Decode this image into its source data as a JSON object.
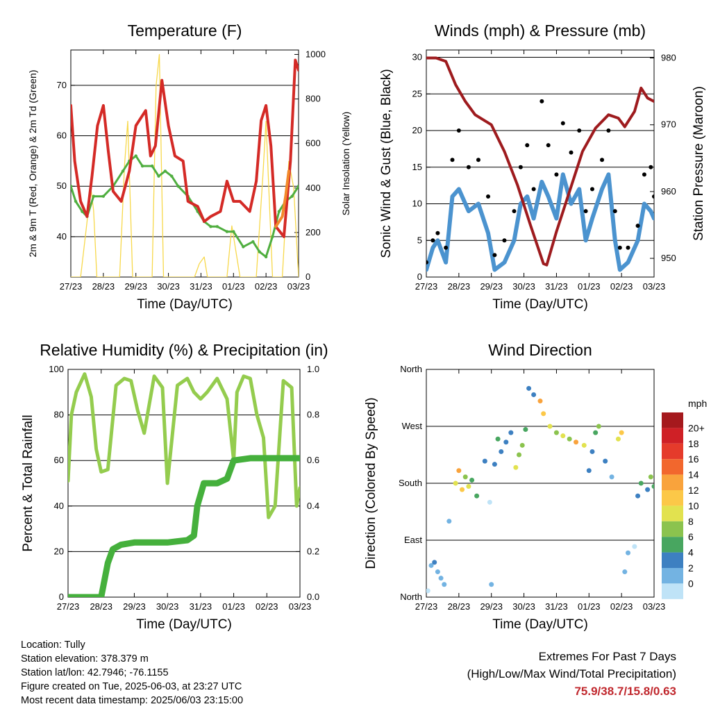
{
  "x_ticks": [
    "27/23",
    "28/23",
    "29/23",
    "30/23",
    "31/23",
    "01/23",
    "02/23",
    "03/23"
  ],
  "colors": {
    "temp_2m": "#d42a26",
    "temp_9m": "#f28a2b",
    "dewpoint": "#4fae3f",
    "solar": "#f7d84a",
    "sonic_wind": "#4b93cf",
    "gust": "#000000",
    "pressure": "#9e1b1e",
    "rh": "#94cc4e",
    "precip": "#45b03c"
  },
  "chart_data": [
    {
      "type": "line",
      "title": "Temperature (F)",
      "xlabel": "Time (Day/UTC)",
      "ylabel": "2m & 9m T (Red, Orange) & 2m Td (Green)",
      "y2label": "Solar Insolation (Yellow)",
      "ylim": [
        32,
        77
      ],
      "yticks": [
        40,
        50,
        60,
        70
      ],
      "y2lim": [
        0,
        1020
      ],
      "y2ticks": [
        0,
        200,
        400,
        600,
        800,
        1000
      ],
      "xlim": [
        0,
        7
      ],
      "series": [
        {
          "name": "2m T",
          "axis": "left",
          "x": [
            0,
            0.12,
            0.3,
            0.5,
            0.65,
            0.82,
            1.0,
            1.15,
            1.3,
            1.55,
            1.8,
            2.0,
            2.3,
            2.45,
            2.6,
            2.8,
            3.0,
            3.2,
            3.45,
            3.6,
            3.9,
            4.1,
            4.3,
            4.6,
            4.8,
            5.0,
            5.2,
            5.5,
            5.7,
            5.85,
            6.0,
            6.15,
            6.3,
            6.55,
            6.75,
            6.9,
            7.0
          ],
          "y": [
            66,
            55,
            47,
            44,
            52,
            62,
            66,
            57,
            49,
            47,
            53,
            62,
            65,
            56,
            58,
            71,
            62,
            56,
            55,
            47,
            46,
            43,
            44,
            45,
            51,
            47,
            47,
            45,
            51,
            63,
            66,
            58,
            42,
            40,
            55,
            75,
            73
          ]
        },
        {
          "name": "9m T",
          "axis": "left",
          "x": [
            6.3,
            6.4,
            6.5,
            6.6,
            6.7
          ],
          "y": [
            42,
            43,
            44,
            48,
            53
          ]
        },
        {
          "name": "2m Td",
          "axis": "left",
          "x": [
            0,
            0.15,
            0.35,
            0.5,
            0.7,
            1.0,
            1.3,
            1.6,
            1.8,
            2.0,
            2.2,
            2.5,
            2.7,
            2.9,
            3.1,
            3.3,
            3.6,
            3.9,
            4.1,
            4.3,
            4.5,
            4.8,
            5.0,
            5.3,
            5.6,
            5.8,
            6.0,
            6.2,
            6.4,
            6.6,
            6.8,
            7.0
          ],
          "y": [
            50,
            47,
            45,
            44,
            48,
            48,
            50,
            53,
            55,
            56,
            54,
            54,
            52,
            53,
            52,
            50,
            48,
            45,
            43,
            42,
            42,
            41,
            41,
            38,
            39,
            37,
            36,
            40,
            45,
            47,
            48,
            50
          ]
        },
        {
          "name": "Solar",
          "axis": "right",
          "x": [
            0,
            0.3,
            0.5,
            0.6,
            0.7,
            0.8,
            1.2,
            1.5,
            1.65,
            1.75,
            1.9,
            2.2,
            2.5,
            2.62,
            2.72,
            2.85,
            3.2,
            3.5,
            3.8,
            3.95,
            4.1,
            4.2,
            4.5,
            4.8,
            4.95,
            5.2,
            5.5,
            5.7,
            5.9,
            6.0,
            6.2,
            6.5,
            6.7,
            6.85,
            7.0
          ],
          "y": [
            0,
            0,
            250,
            420,
            300,
            0,
            0,
            0,
            500,
            700,
            0,
            0,
            0,
            860,
            1000,
            0,
            0,
            0,
            0,
            60,
            90,
            0,
            0,
            0,
            230,
            0,
            0,
            0,
            450,
            700,
            0,
            0,
            520,
            400,
            0
          ]
        }
      ]
    },
    {
      "type": "line",
      "title": "Winds (mph) & Pressure (mb)",
      "xlabel": "Time (Day/UTC)",
      "ylabel": "Sonic Wind & Gust (Blue, Black)",
      "y2label": "Station Pressure (Maroon)",
      "ylim": [
        0,
        31
      ],
      "yticks": [
        0,
        5,
        10,
        15,
        20,
        25,
        30
      ],
      "y2lim": [
        947.2,
        981.2
      ],
      "y2ticks": [
        950,
        960,
        970,
        980
      ],
      "xlim": [
        0,
        7
      ],
      "series": [
        {
          "name": "Sonic Wind",
          "axis": "left",
          "x": [
            0,
            0.2,
            0.35,
            0.6,
            0.8,
            1.0,
            1.3,
            1.6,
            1.9,
            2.1,
            2.4,
            2.7,
            2.9,
            3.1,
            3.3,
            3.55,
            3.75,
            4.0,
            4.2,
            4.45,
            4.7,
            4.9,
            5.1,
            5.4,
            5.6,
            5.8,
            5.95,
            6.2,
            6.5,
            6.7,
            6.9,
            7.0
          ],
          "y": [
            1,
            4,
            5,
            2,
            11,
            12,
            9,
            10,
            6,
            1,
            2,
            5,
            10,
            11,
            8,
            13,
            11,
            8,
            14,
            10,
            12,
            5,
            8,
            12,
            14,
            5,
            1,
            2,
            5,
            10,
            9,
            8
          ]
        },
        {
          "name": "Gust",
          "axis": "left",
          "x": [
            0,
            0.2,
            0.35,
            0.6,
            0.8,
            1.0,
            1.3,
            1.6,
            1.9,
            2.1,
            2.4,
            2.7,
            2.9,
            3.1,
            3.3,
            3.55,
            3.75,
            4.0,
            4.2,
            4.45,
            4.7,
            4.9,
            5.1,
            5.4,
            5.6,
            5.8,
            5.95,
            6.2,
            6.5,
            6.7,
            6.9,
            7.0
          ],
          "y": [
            2,
            5,
            6,
            4,
            16,
            20,
            15,
            16,
            11,
            3,
            5,
            9,
            15,
            18,
            12,
            24,
            18,
            14,
            21,
            17,
            20,
            9,
            12,
            16,
            20,
            9,
            4,
            4,
            7,
            14,
            15,
            11
          ]
        },
        {
          "name": "Pressure",
          "axis": "right",
          "x": [
            0,
            0.3,
            0.6,
            0.9,
            1.2,
            1.5,
            2.0,
            2.4,
            2.8,
            3.2,
            3.6,
            3.7,
            4.0,
            4.4,
            4.8,
            5.2,
            5.6,
            5.9,
            6.1,
            6.4,
            6.6,
            6.8,
            7.0
          ],
          "y": [
            980,
            980,
            979.5,
            976,
            973.5,
            971.5,
            970,
            966,
            961,
            955,
            949.2,
            949,
            954,
            960,
            966,
            969.5,
            971.5,
            971,
            969.7,
            972,
            975.5,
            974,
            973.5
          ]
        }
      ]
    },
    {
      "type": "line",
      "title": "Relative Humidity (%) & Precipitation (in)",
      "xlabel": "Time (Day/UTC)",
      "ylabel": "Percent & Total Rainfall",
      "ylim": [
        0,
        100
      ],
      "yticks": [
        0,
        20,
        40,
        60,
        80,
        100
      ],
      "y2lim": [
        0,
        1.0
      ],
      "y2ticks": [
        "0.0",
        "0.2",
        "0.4",
        "0.6",
        "0.8",
        "1.0"
      ],
      "xlim": [
        0,
        7
      ],
      "series": [
        {
          "name": "RH",
          "axis": "left",
          "x": [
            0,
            0.1,
            0.25,
            0.5,
            0.7,
            0.85,
            1.0,
            1.2,
            1.45,
            1.7,
            1.9,
            2.1,
            2.3,
            2.6,
            2.85,
            3.0,
            3.3,
            3.6,
            3.8,
            4.0,
            4.2,
            4.5,
            4.8,
            5.0,
            5.1,
            5.3,
            5.5,
            5.7,
            5.9,
            6.05,
            6.25,
            6.5,
            6.75,
            6.9,
            7.0
          ],
          "y": [
            51,
            80,
            90,
            98,
            88,
            65,
            55,
            56,
            93,
            96,
            95,
            82,
            72,
            97,
            92,
            50,
            93,
            96,
            90,
            87,
            90,
            96,
            87,
            60,
            90,
            97,
            96,
            80,
            70,
            35,
            40,
            95,
            92,
            40,
            48
          ]
        },
        {
          "name": "Precip",
          "axis": "right",
          "x": [
            0,
            0.6,
            1.0,
            1.2,
            1.35,
            1.6,
            2.0,
            3.0,
            3.6,
            3.8,
            3.9,
            4.1,
            4.5,
            4.8,
            5.0,
            5.5,
            6.0,
            6.5,
            7.0
          ],
          "y": [
            0,
            0,
            0,
            0.15,
            0.21,
            0.23,
            0.24,
            0.24,
            0.25,
            0.27,
            0.4,
            0.5,
            0.5,
            0.52,
            0.6,
            0.61,
            0.61,
            0.61,
            0.61
          ]
        }
      ]
    },
    {
      "type": "scatter",
      "title": "Wind Direction",
      "xlabel": "Time (Day/UTC)",
      "ylabel": "Direction (Colored By Speed)",
      "ylim": [
        0,
        360
      ],
      "yticks": [
        "North",
        "East",
        "South",
        "West",
        "North"
      ],
      "xlim": [
        0,
        7
      ],
      "legend_title": "mph",
      "legend_labels": [
        "20+",
        "18",
        "16",
        "14",
        "12",
        "10",
        "8",
        "6",
        "4",
        "2",
        "0"
      ],
      "legend_colors": [
        "#a5191d",
        "#cf2026",
        "#e53b2b",
        "#f2672d",
        "#f9a33c",
        "#fcc848",
        "#e2e24f",
        "#8bc34e",
        "#48a660",
        "#3d80c1",
        "#73b3e2",
        "#bfe3f7"
      ],
      "series": [
        {
          "name": "direction",
          "x": [
            0.05,
            0.15,
            0.25,
            0.35,
            0.45,
            0.55,
            0.7,
            0.9,
            1.0,
            1.1,
            1.2,
            1.3,
            1.4,
            1.55,
            1.8,
            1.95,
            2.0,
            2.1,
            2.2,
            2.3,
            2.45,
            2.6,
            2.75,
            2.85,
            2.95,
            3.05,
            3.15,
            3.3,
            3.5,
            3.6,
            3.8,
            4.0,
            4.2,
            4.4,
            4.6,
            4.85,
            5.0,
            5.1,
            5.2,
            5.3,
            5.5,
            5.7,
            5.9,
            6.0,
            6.1,
            6.2,
            6.4,
            6.5,
            6.6,
            6.8,
            6.9,
            7.0
          ],
          "y": [
            10,
            50,
            55,
            40,
            30,
            20,
            120,
            180,
            200,
            170,
            190,
            175,
            185,
            160,
            215,
            150,
            20,
            210,
            250,
            230,
            245,
            260,
            205,
            225,
            240,
            265,
            330,
            320,
            310,
            290,
            270,
            260,
            255,
            250,
            245,
            240,
            200,
            230,
            260,
            270,
            215,
            190,
            250,
            260,
            40,
            70,
            80,
            160,
            180,
            170,
            190,
            175
          ],
          "speed": [
            1,
            3,
            4,
            2,
            3,
            2,
            2,
            10,
            14,
            12,
            8,
            10,
            6,
            6,
            5,
            1,
            2,
            4,
            6,
            5,
            4,
            4,
            10,
            9,
            8,
            6,
            5,
            4,
            14,
            12,
            10,
            9,
            10,
            8,
            14,
            11,
            5,
            4,
            7,
            8,
            4,
            3,
            10,
            12,
            3,
            2,
            1,
            4,
            6,
            5,
            8,
            7
          ]
        }
      ]
    }
  ],
  "info": {
    "location": "Location: Tully",
    "elevation": "Station elevation: 378.379 m",
    "latlon": "Station lat/lon: 42.7946; -76.1155",
    "created": "Figure created on Tue, 2025-06-03, at 23:27 UTC",
    "recent": "Most recent data timestamp: 2025/06/03 23:15:00"
  },
  "extremes": {
    "title": "Extremes For Past 7 Days",
    "subtitle": "(High/Low/Max Wind/Total Precipitation)",
    "values": "75.9/38.7/15.8/0.63"
  }
}
